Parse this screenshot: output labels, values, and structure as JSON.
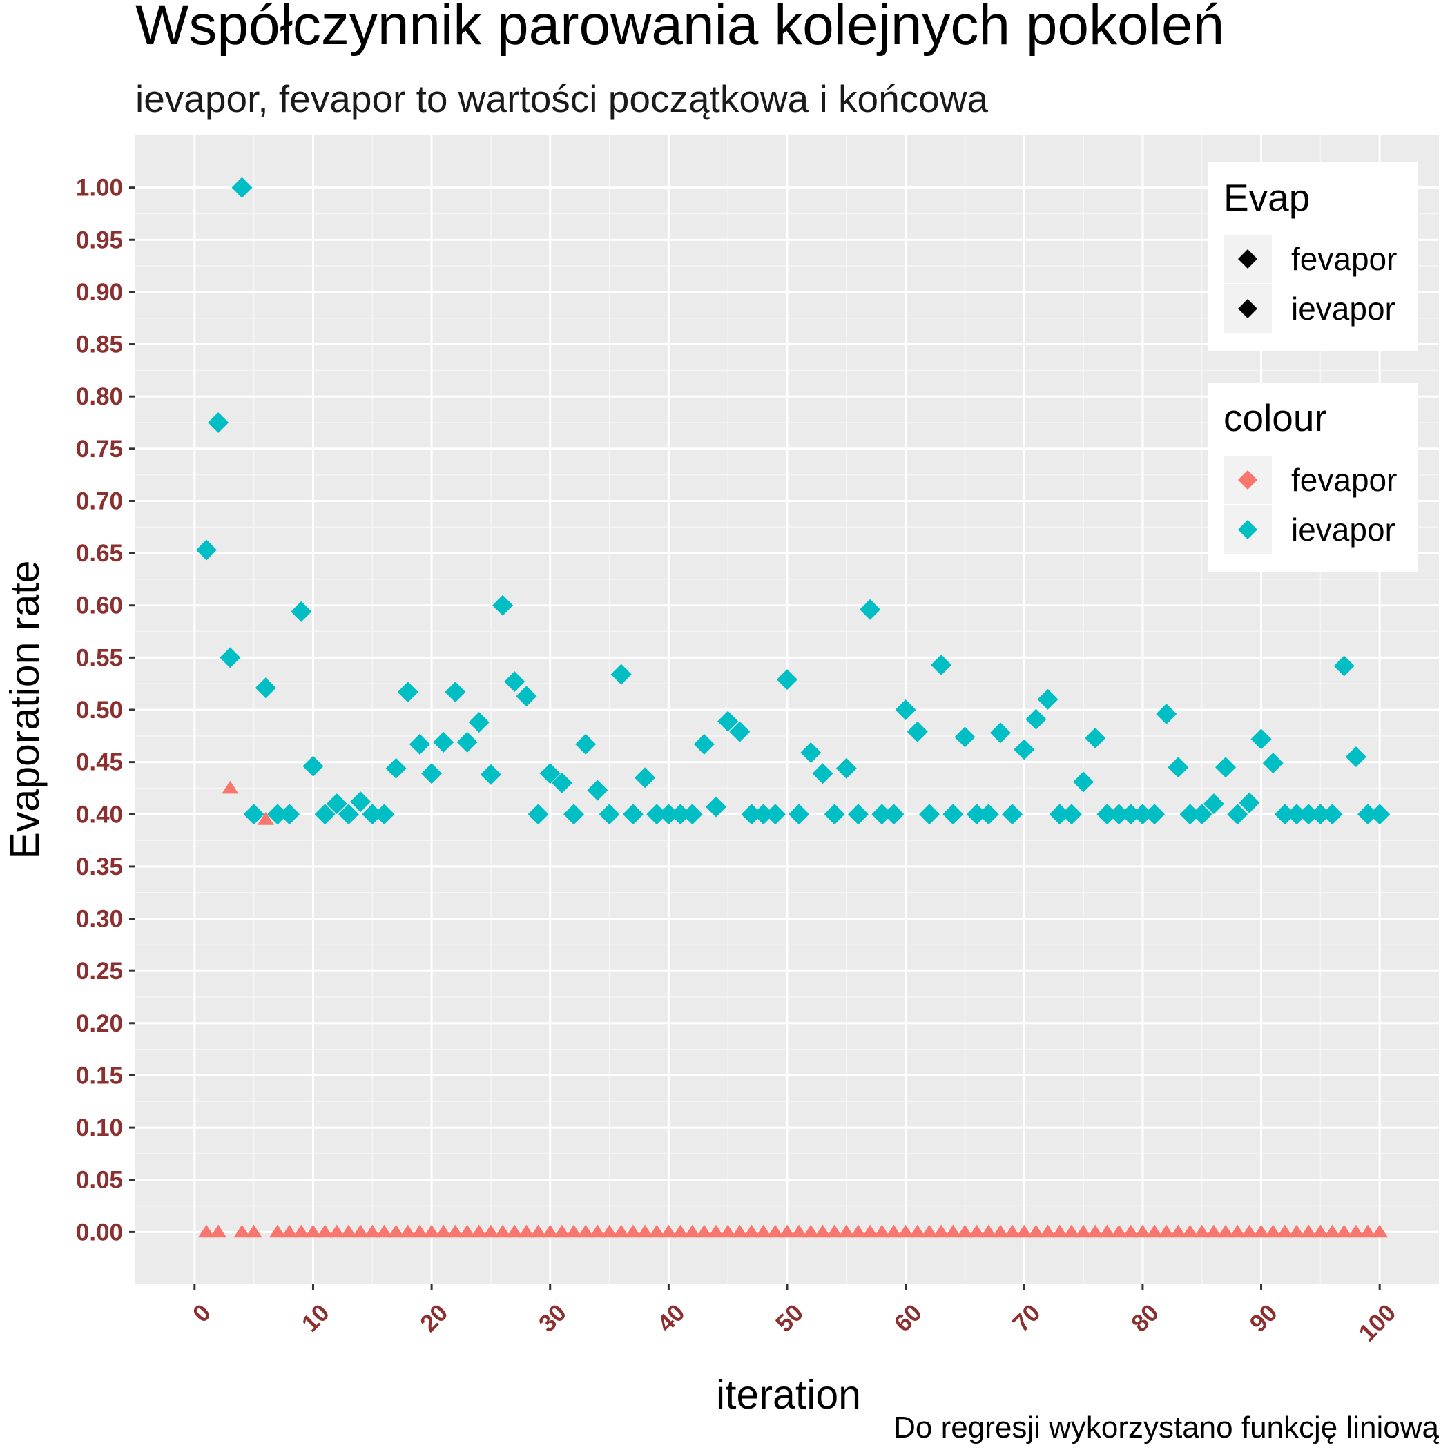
{
  "chart_data": {
    "type": "scatter",
    "title": "Współczynnik parowania kolejnych pokoleń",
    "subtitle": "ievapor, fevapor to wartości początkowa i końcowa",
    "xlabel": "iteration",
    "ylabel": "Evaporation rate",
    "caption": "Do regresji wykorzystano funkcję liniową",
    "xlim": [
      -5,
      105
    ],
    "ylim": [
      -0.05,
      1.05
    ],
    "x_ticks": [
      0,
      10,
      20,
      30,
      40,
      50,
      60,
      70,
      80,
      90,
      100
    ],
    "x_tick_labels": [
      "0",
      "10",
      "20",
      "30",
      "40",
      "50",
      "60",
      "70",
      "80",
      "90",
      "100"
    ],
    "y_ticks": [
      0,
      0.05,
      0.1,
      0.15,
      0.2,
      0.25,
      0.3,
      0.35,
      0.4,
      0.45,
      0.5,
      0.55,
      0.6,
      0.65,
      0.7,
      0.75,
      0.8,
      0.85,
      0.9,
      0.95,
      1.0
    ],
    "y_tick_labels": [
      "0.00",
      "0.05",
      "0.10",
      "0.15",
      "0.20",
      "0.25",
      "0.30",
      "0.35",
      "0.40",
      "0.45",
      "0.50",
      "0.55",
      "0.60",
      "0.65",
      "0.70",
      "0.75",
      "0.80",
      "0.85",
      "0.90",
      "0.95",
      "1.00"
    ],
    "grid": true,
    "legend_position": "top-right",
    "legends": [
      {
        "title": "Evap",
        "entries": [
          {
            "label": "fevapor",
            "shape": "diamond",
            "color": "#000000"
          },
          {
            "label": "ievapor",
            "shape": "diamond",
            "color": "#000000"
          }
        ]
      },
      {
        "title": "colour",
        "entries": [
          {
            "label": "fevapor",
            "shape": "diamond",
            "color": "#F8766D"
          },
          {
            "label": "ievapor",
            "shape": "diamond",
            "color": "#00BFC4"
          }
        ]
      }
    ],
    "series": [
      {
        "name": "ievapor",
        "color": "#00BFC4",
        "marker": "diamond",
        "x": [
          1,
          2,
          3,
          4,
          5,
          6,
          7,
          8,
          9,
          10,
          11,
          12,
          13,
          14,
          15,
          16,
          17,
          18,
          19,
          20,
          21,
          22,
          23,
          24,
          25,
          26,
          27,
          28,
          29,
          30,
          31,
          32,
          33,
          34,
          35,
          36,
          37,
          38,
          39,
          40,
          41,
          42,
          43,
          44,
          45,
          46,
          47,
          48,
          49,
          50,
          51,
          52,
          53,
          54,
          55,
          56,
          57,
          58,
          59,
          60,
          61,
          62,
          63,
          64,
          65,
          66,
          67,
          68,
          69,
          70,
          71,
          72,
          73,
          74,
          75,
          76,
          77,
          78,
          79,
          80,
          81,
          82,
          83,
          84,
          85,
          86,
          87,
          88,
          89,
          90,
          91,
          92,
          93,
          94,
          95,
          96,
          97,
          98,
          99,
          100
        ],
        "y": [
          0.653,
          0.775,
          0.55,
          1.0,
          0.4,
          0.521,
          0.4,
          0.4,
          0.594,
          0.446,
          0.4,
          0.41,
          0.4,
          0.412,
          0.4,
          0.4,
          0.444,
          0.517,
          0.467,
          0.439,
          0.469,
          0.517,
          0.469,
          0.488,
          0.438,
          0.6,
          0.527,
          0.513,
          0.4,
          0.439,
          0.43,
          0.4,
          0.467,
          0.423,
          0.4,
          0.534,
          0.4,
          0.435,
          0.4,
          0.4,
          0.4,
          0.4,
          0.467,
          0.407,
          0.489,
          0.479,
          0.4,
          0.4,
          0.4,
          0.529,
          0.4,
          0.459,
          0.439,
          0.4,
          0.444,
          0.4,
          0.596,
          0.4,
          0.4,
          0.5,
          0.479,
          0.4,
          0.543,
          0.4,
          0.474,
          0.4,
          0.4,
          0.478,
          0.4,
          0.462,
          0.491,
          0.51,
          0.4,
          0.4,
          0.431,
          0.473,
          0.4,
          0.4,
          0.4,
          0.4,
          0.4,
          0.496,
          0.445,
          0.4,
          0.4,
          0.41,
          0.445,
          0.4,
          0.411,
          0.472,
          0.449,
          0.4,
          0.4,
          0.4,
          0.4,
          0.4,
          0.542,
          0.455,
          0.4,
          0.4
        ]
      },
      {
        "name": "fevapor",
        "color": "#F8766D",
        "marker": "triangle",
        "x": [
          1,
          2,
          3,
          4,
          5,
          6,
          7,
          8,
          9,
          10,
          11,
          12,
          13,
          14,
          15,
          16,
          17,
          18,
          19,
          20,
          21,
          22,
          23,
          24,
          25,
          26,
          27,
          28,
          29,
          30,
          31,
          32,
          33,
          34,
          35,
          36,
          37,
          38,
          39,
          40,
          41,
          42,
          43,
          44,
          45,
          46,
          47,
          48,
          49,
          50,
          51,
          52,
          53,
          54,
          55,
          56,
          57,
          58,
          59,
          60,
          61,
          62,
          63,
          64,
          65,
          66,
          67,
          68,
          69,
          70,
          71,
          72,
          73,
          74,
          75,
          76,
          77,
          78,
          79,
          80,
          81,
          82,
          83,
          84,
          85,
          86,
          87,
          88,
          89,
          90,
          91,
          92,
          93,
          94,
          95,
          96,
          97,
          98,
          99,
          100
        ],
        "y": [
          0,
          0,
          0.425,
          0,
          0,
          0.395,
          0,
          0,
          0,
          0,
          0,
          0,
          0,
          0,
          0,
          0,
          0,
          0,
          0,
          0,
          0,
          0,
          0,
          0,
          0,
          0,
          0,
          0,
          0,
          0,
          0,
          0,
          0,
          0,
          0,
          0,
          0,
          0,
          0,
          0,
          0,
          0,
          0,
          0,
          0,
          0,
          0,
          0,
          0,
          0,
          0,
          0,
          0,
          0,
          0,
          0,
          0,
          0,
          0,
          0,
          0,
          0,
          0,
          0,
          0,
          0,
          0,
          0,
          0,
          0,
          0,
          0,
          0,
          0,
          0,
          0,
          0,
          0,
          0,
          0,
          0,
          0,
          0,
          0,
          0,
          0,
          0,
          0,
          0,
          0,
          0,
          0,
          0,
          0,
          0,
          0,
          0,
          0,
          0,
          0
        ]
      }
    ]
  }
}
